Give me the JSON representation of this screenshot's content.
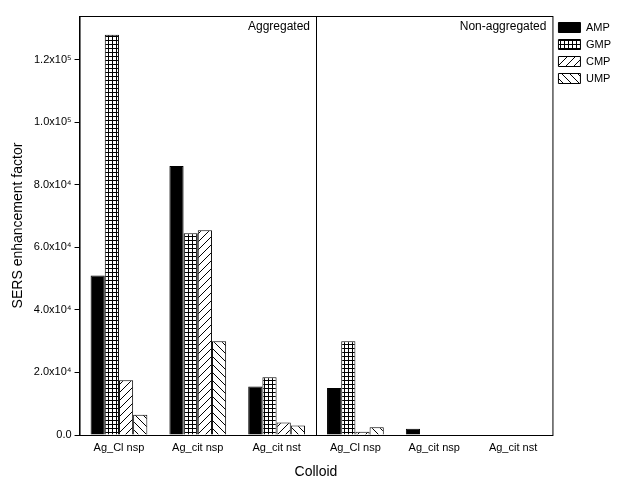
{
  "chart_data": {
    "type": "bar",
    "x_label": "Colloid",
    "y_label": "SERS enhancement factor",
    "annotations": [
      "Aggregated",
      "Non-aggregated"
    ],
    "categories": [
      "Ag_Cl nsp",
      "Ag_cit nsp",
      "Ag_cit nst",
      "Ag_Cl nsp",
      "Ag_cit nsp",
      "Ag_cit nst"
    ],
    "series": [
      {
        "name": "AMP",
        "color": "#000000",
        "values": [
          51000,
          86000,
          15500,
          15000,
          2000,
          0
        ]
      },
      {
        "name": "GMP",
        "color": "#000000",
        "values": [
          128000,
          64500,
          18500,
          30000,
          0,
          0
        ]
      },
      {
        "name": "CMP",
        "color": "#000000",
        "values": [
          17500,
          65500,
          4000,
          1000,
          0,
          0
        ]
      },
      {
        "name": "UMP",
        "color": "#000000",
        "values": [
          6500,
          30000,
          3000,
          2500,
          0,
          0
        ]
      }
    ],
    "ylim": [
      0,
      134000
    ],
    "yticks": [
      {
        "value": 0,
        "label": "0.0"
      },
      {
        "value": 20000,
        "label": "2.0x10⁴"
      },
      {
        "value": 40000,
        "label": "4.0x10⁴"
      },
      {
        "value": 60000,
        "label": "6.0x10⁴"
      },
      {
        "value": 80000,
        "label": "8.0x10⁴"
      },
      {
        "value": 100000,
        "label": "1.0x10⁵"
      },
      {
        "value": 120000,
        "label": "1.2x10⁵"
      }
    ],
    "grid": false,
    "legend": "upper right"
  }
}
